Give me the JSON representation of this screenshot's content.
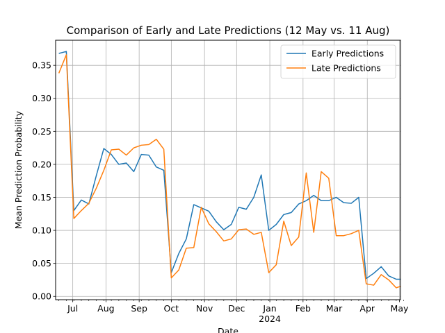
{
  "chart_data": {
    "type": "line",
    "title": "Comparison of Early and Late Predictions (12 May vs. 11 Aug)",
    "xlabel": "Date",
    "ylabel": "Mean Prediction Probability",
    "grid": true,
    "legend_position": "top-right",
    "x_start": "2023-06-18",
    "x_step_days": 7,
    "xlim": [
      "2023-06-15",
      "2024-05-02"
    ],
    "ylim": [
      -0.005,
      0.388
    ],
    "yticks": [
      0.0,
      0.05,
      0.1,
      0.15,
      0.2,
      0.25,
      0.3,
      0.35
    ],
    "ytick_labels": [
      "0.00",
      "0.05",
      "0.10",
      "0.15",
      "0.20",
      "0.25",
      "0.30",
      "0.35"
    ],
    "xticks": [
      {
        "date": "2023-07-01",
        "label": "Jul"
      },
      {
        "date": "2023-08-01",
        "label": "Aug"
      },
      {
        "date": "2023-09-01",
        "label": "Sep"
      },
      {
        "date": "2023-10-01",
        "label": "Oct"
      },
      {
        "date": "2023-11-01",
        "label": "Nov"
      },
      {
        "date": "2023-12-01",
        "label": "Dec"
      },
      {
        "date": "2024-01-01",
        "label": "Jan",
        "sublabel": "2024"
      },
      {
        "date": "2024-02-01",
        "label": "Feb"
      },
      {
        "date": "2024-03-01",
        "label": "Mar"
      },
      {
        "date": "2024-04-01",
        "label": "Apr"
      },
      {
        "date": "2024-05-01",
        "label": "May"
      }
    ],
    "series": [
      {
        "name": "Early Predictions",
        "color": "#1f77b4",
        "values": [
          0.368,
          0.371,
          0.13,
          0.146,
          0.14,
          0.183,
          0.224,
          0.215,
          0.2,
          0.202,
          0.189,
          0.215,
          0.214,
          0.196,
          0.191,
          0.036,
          0.065,
          0.087,
          0.139,
          0.134,
          0.129,
          0.113,
          0.101,
          0.109,
          0.135,
          0.132,
          0.15,
          0.184,
          0.1,
          0.109,
          0.124,
          0.127,
          0.14,
          0.145,
          0.153,
          0.145,
          0.145,
          0.15,
          0.142,
          0.141,
          0.15,
          0.027,
          0.035,
          0.045,
          0.031,
          0.026,
          0.026
        ]
      },
      {
        "name": "Late Predictions",
        "color": "#ff7f0e",
        "values": [
          0.338,
          0.366,
          0.118,
          0.13,
          0.141,
          0.164,
          0.191,
          0.222,
          0.223,
          0.214,
          0.225,
          0.229,
          0.23,
          0.238,
          0.223,
          0.028,
          0.04,
          0.073,
          0.074,
          0.135,
          0.11,
          0.098,
          0.084,
          0.087,
          0.101,
          0.102,
          0.094,
          0.097,
          0.036,
          0.048,
          0.114,
          0.077,
          0.09,
          0.187,
          0.097,
          0.189,
          0.179,
          0.092,
          0.092,
          0.095,
          0.1,
          0.019,
          0.017,
          0.033,
          0.025,
          0.013,
          0.017
        ]
      }
    ]
  }
}
